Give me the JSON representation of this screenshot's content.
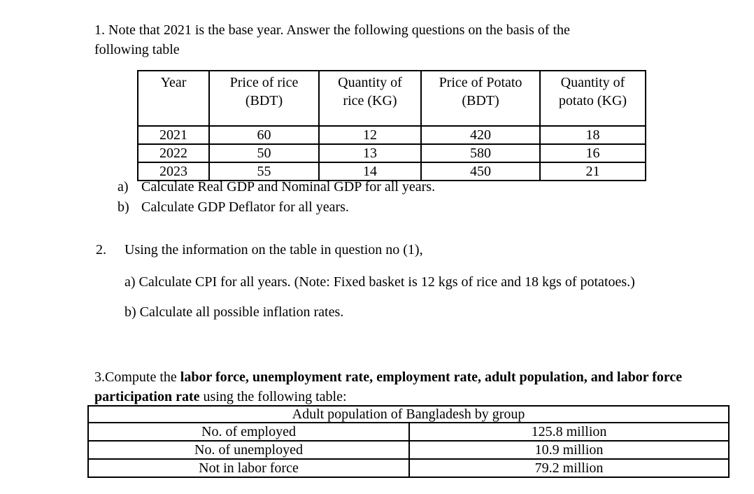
{
  "page": {
    "background": "#ffffff",
    "text_color": "#000000"
  },
  "q1": {
    "line1": "1. Note that 2021 is the base year. Answer the following questions on the basis of the",
    "line2": "following table",
    "table": {
      "headers": [
        {
          "lines": [
            "Year",
            ""
          ]
        },
        {
          "lines": [
            "Price of rice",
            "(BDT)"
          ]
        },
        {
          "lines": [
            "Quantity of",
            "rice (KG)"
          ]
        },
        {
          "lines": [
            "Price of Potato",
            "(BDT)"
          ]
        },
        {
          "lines": [
            "Quantity of",
            "potato (KG)"
          ]
        }
      ],
      "rows": [
        [
          "2021",
          "60",
          "12",
          "420",
          "18"
        ],
        [
          "2022",
          "50",
          "13",
          "580",
          "16"
        ],
        [
          "2023",
          "55",
          "14",
          "450",
          "21"
        ]
      ]
    },
    "items": [
      {
        "marker": "a)",
        "text": "Calculate Real GDP and Nominal GDP for all years."
      },
      {
        "marker": "b)",
        "text": "Calculate GDP Deflator for all years."
      }
    ]
  },
  "q2": {
    "marker": "2.",
    "text": "Using the information on the table in question no (1),",
    "item_a": "a) Calculate CPI for all years. (Note: Fixed basket is 12 kgs of rice and 18 kgs of potatoes.)",
    "item_b": "b) Calculate all possible inflation rates."
  },
  "q3": {
    "line1_normal": "3.Compute the ",
    "line1_bold": "labor force, unemployment rate, employment rate, adult population, and labor force",
    "line2_bold": "participation rate",
    "line2_normal": " using the following table:",
    "table": {
      "title": "Adult population of Bangladesh by group",
      "rows": [
        {
          "label": "No. of employed",
          "value": "125.8 million"
        },
        {
          "label": "No. of unemployed",
          "value": "10.9 million"
        },
        {
          "label": "Not in labor force",
          "value": "79.2 million"
        }
      ]
    }
  }
}
